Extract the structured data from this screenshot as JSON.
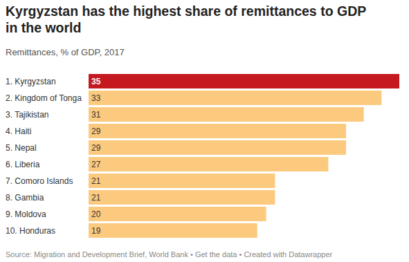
{
  "chart_data": {
    "type": "bar",
    "orientation": "horizontal",
    "title": "Kyrgyzstan has the highest share of remittances to GDP in the world",
    "subtitle": "Remittances, % of GDP, 2017",
    "categories": [
      "1. Kyrgyzstan",
      "2. Kingdom of Tonga",
      "3. Tajikistan",
      "4. Haiti",
      "5. Nepal",
      "6. Liberia",
      "7. Comoro Islands",
      "8. Gambia",
      "9. Moldova",
      "10. Honduras"
    ],
    "values": [
      35,
      33,
      31,
      29,
      29,
      27,
      21,
      21,
      20,
      19
    ],
    "colors": [
      "#c4191f",
      "#fbca7f",
      "#fbca7f",
      "#fbca7f",
      "#fbca7f",
      "#fbca7f",
      "#fbca7f",
      "#fbca7f",
      "#fbca7f",
      "#fbca7f"
    ],
    "xlim": [
      0,
      35
    ],
    "data_labels": true,
    "tick_labels": false,
    "grid": false,
    "source": "Source: Migration and Development Brief, World Bank • Get the data • Created with Datawrapper"
  }
}
